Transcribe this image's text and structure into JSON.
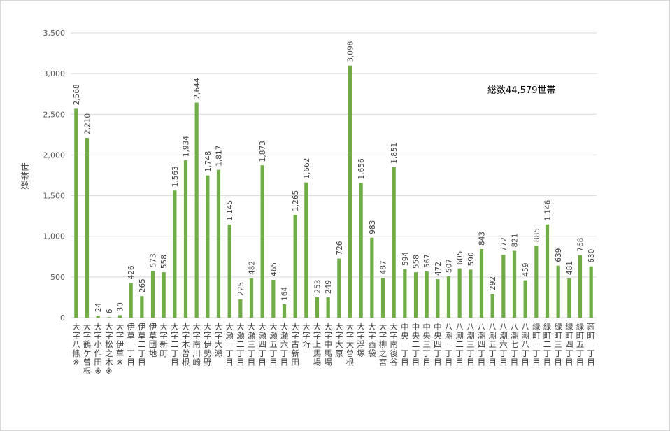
{
  "chart_data": {
    "type": "bar",
    "ylabel": "世帯数",
    "annotation": "総数44,579世帯",
    "ylim": [
      0,
      3500
    ],
    "ytick_labels": [
      "0",
      "500",
      "1,000",
      "1,500",
      "2,000",
      "2,500",
      "3,000",
      "3,500"
    ],
    "grid": true,
    "bar_color": "#70ad47",
    "categories": [
      "大字八條※",
      "大字鶴ケ曽根",
      "大字小作田※",
      "大字松之木※",
      "大字伊草※",
      "伊草一丁目",
      "伊草二丁目",
      "伊草団地",
      "大字新町",
      "大字二丁目",
      "大字木曽根",
      "大字南川崎",
      "大字伊勢野",
      "大字大瀬",
      "大瀬一丁目",
      "大瀬二丁目",
      "大瀬三丁目",
      "大瀬四丁目",
      "大瀬五丁目",
      "大瀬六丁目",
      "大字古新田",
      "大字垳",
      "大字上馬場",
      "大字中馬場",
      "大字大原",
      "大字大曽根",
      "大字浮塚",
      "大字西袋",
      "大字柳之宮",
      "大字南後谷",
      "中央一丁目",
      "中央二丁目",
      "中央三丁目",
      "中央四丁目",
      "八潮一丁目",
      "八潮二丁目",
      "八潮三丁目",
      "八潮四丁目",
      "八潮五丁目",
      "八潮六丁目",
      "八潮七丁目",
      "八潮八丁目",
      "緑町一丁目",
      "緑町二丁目",
      "緑町三丁目",
      "緑町四丁目",
      "緑町五丁目",
      "茜町一丁目"
    ],
    "values": [
      2568,
      2210,
      24,
      6,
      30,
      426,
      265,
      573,
      558,
      1563,
      1934,
      2644,
      1748,
      1817,
      1145,
      225,
      482,
      1873,
      465,
      164,
      1265,
      1662,
      253,
      249,
      726,
      3098,
      1656,
      983,
      487,
      1851,
      594,
      558,
      567,
      472,
      507,
      605,
      590,
      843,
      292,
      772,
      821,
      459,
      885,
      1146,
      639,
      481,
      768,
      630
    ],
    "value_labels": [
      "2,568",
      "2,210",
      "24",
      "6",
      "30",
      "426",
      "265",
      "573",
      "558",
      "1,563",
      "1,934",
      "2,644",
      "1,748",
      "1,817",
      "1,145",
      "225",
      "482",
      "1,873",
      "465",
      "164",
      "1,265",
      "1,662",
      "253",
      "249",
      "726",
      "3,098",
      "1,656",
      "983",
      "487",
      "1,851",
      "594",
      "558",
      "567",
      "472",
      "507",
      "605",
      "590",
      "843",
      "292",
      "772",
      "821",
      "459",
      "885",
      "1,146",
      "639",
      "481",
      "768",
      "630"
    ]
  }
}
